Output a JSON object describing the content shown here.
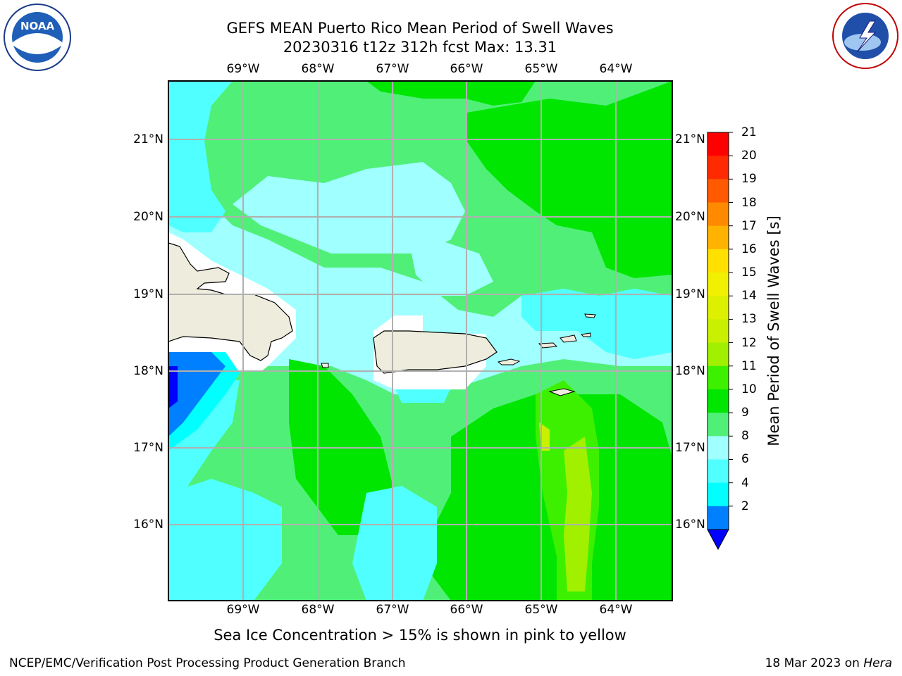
{
  "title": {
    "line1": "GEFS MEAN Puerto Rico Mean Period of Swell Waves",
    "line2": "20230316 t12z 312h fcst   Max: 13.31"
  },
  "subtitle": "Sea Ice Concentration > 15% is shown in pink to yellow",
  "footer": {
    "left": "NCEP/EMC/Verification Post Processing Product Generation Branch",
    "right_prefix": "18 Mar 2023 on ",
    "right_machine": "Hera"
  },
  "axes": {
    "longitudes": [
      "69°W",
      "68°W",
      "67°W",
      "66°W",
      "65°W",
      "64°W"
    ],
    "latitudes": [
      "21°N",
      "20°N",
      "19°N",
      "18°N",
      "17°N",
      "16°N"
    ]
  },
  "colorbar": {
    "label": "Mean Period of Swell Waves [s]",
    "ticks": [
      "21",
      "20",
      "19",
      "18",
      "17",
      "16",
      "15",
      "14",
      "13",
      "12",
      "11",
      "10",
      "9",
      "8",
      "6",
      "4",
      "2"
    ],
    "colors": [
      "#ff0000",
      "#ff2a00",
      "#ff5a00",
      "#ff8a00",
      "#ffb200",
      "#ffe000",
      "#f0f000",
      "#ddf000",
      "#c8f000",
      "#a0f000",
      "#3cf000",
      "#00e600",
      "#50f078",
      "#a0ffff",
      "#50ffff",
      "#00ffff",
      "#0080ff",
      "#0000ff"
    ]
  },
  "logos": {
    "left": "NOAA",
    "right": "NATIONAL WEATHER SERVICE"
  }
}
